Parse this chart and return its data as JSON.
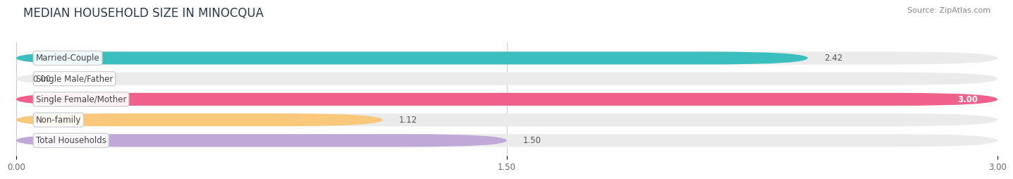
{
  "title": "MEDIAN HOUSEHOLD SIZE IN MINOCQUA",
  "source": "Source: ZipAtlas.com",
  "categories": [
    "Married-Couple",
    "Single Male/Father",
    "Single Female/Mother",
    "Non-family",
    "Total Households"
  ],
  "values": [
    2.42,
    0.0,
    3.0,
    1.12,
    1.5
  ],
  "bar_colors": [
    "#3bbfbe",
    "#a0b4e8",
    "#f0608a",
    "#f9c87a",
    "#c0a8d8"
  ],
  "bar_bg_color": "#ebebeb",
  "xmax": 3.0,
  "xticks": [
    0.0,
    1.5,
    3.0
  ],
  "xtick_labels": [
    "0.00",
    "1.50",
    "3.00"
  ],
  "label_fontsize": 8.5,
  "value_fontsize": 8.5,
  "title_fontsize": 12,
  "source_fontsize": 8,
  "background_color": "#ffffff",
  "grid_color": "#cccccc",
  "bar_height": 0.62,
  "label_box_color": "#ffffff",
  "label_text_color": "#444444",
  "value_text_color_inside": "#ffffff",
  "value_text_color_outside": "#555555"
}
